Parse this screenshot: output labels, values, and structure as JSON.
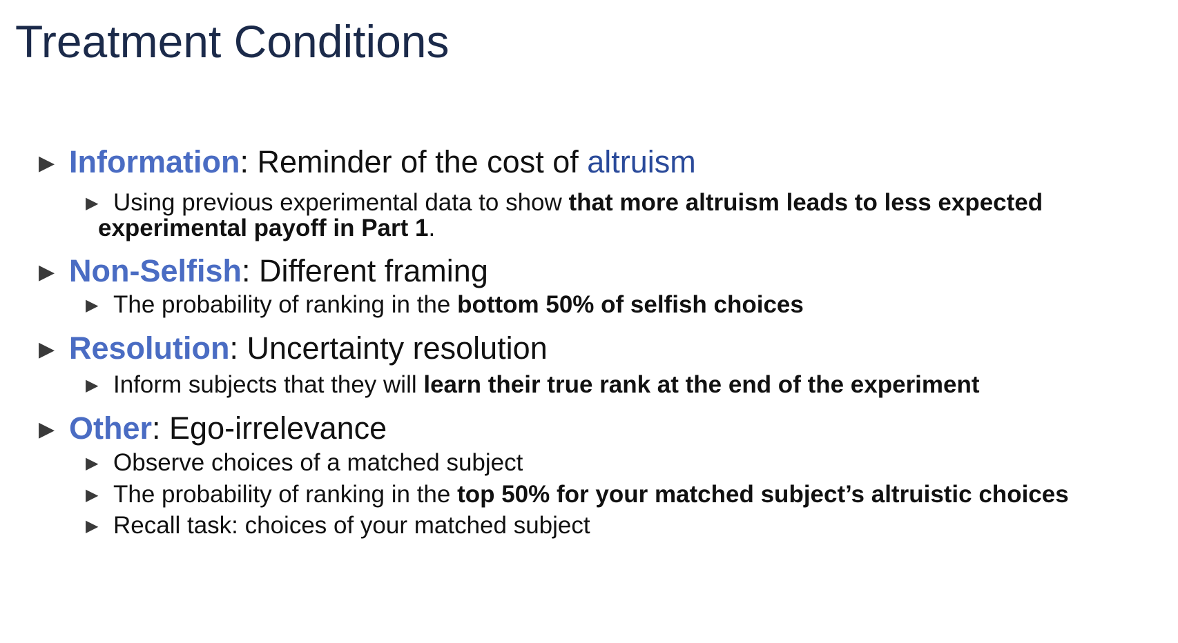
{
  "title": "Treatment Conditions",
  "marker_glyph": "▶",
  "colors": {
    "title": "#1b2a4a",
    "keyword": "#4a6cc3",
    "accent_word": "#2a4a9a",
    "text": "#111111"
  },
  "bullets": [
    {
      "keyword": "Information",
      "sep": ": ",
      "text": "Reminder of the cost of ",
      "accent": "altruism",
      "sub": [
        {
          "plain": "Using previous experimental data to show ",
          "bold": "that more altruism leads to less expected",
          "bold2": "experimental payoff in Part 1",
          "tail": "."
        }
      ]
    },
    {
      "keyword": "Non-Selfish",
      "sep": ": ",
      "text": "Different framing",
      "sub": [
        {
          "plain": "The probability of ranking in the ",
          "bold": "bottom 50% of selfish choices"
        }
      ]
    },
    {
      "keyword": "Resolution",
      "sep": ": ",
      "text": "Uncertainty resolution",
      "sub": [
        {
          "plain": "Inform subjects that they will ",
          "bold": "learn their true rank at the end of the experiment"
        }
      ]
    },
    {
      "keyword": "Other",
      "sep": ": ",
      "text": "Ego-irrelevance",
      "sub": [
        {
          "plain": "Observe choices of a matched subject"
        },
        {
          "plain": "The probability of ranking in the ",
          "bold": "top 50% for your matched subject’s altruistic choices"
        },
        {
          "plain": "Recall task: choices of your matched subject"
        }
      ]
    }
  ]
}
